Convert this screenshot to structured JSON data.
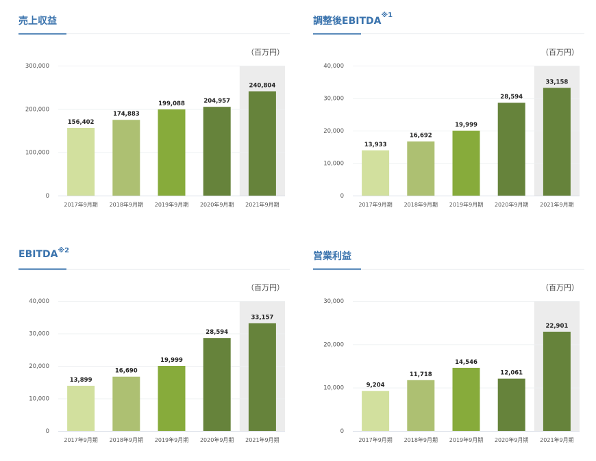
{
  "colors": {
    "title": "#3a73ad",
    "highlight_bg": "#ececec",
    "bars": [
      "#d2e09e",
      "#adc072",
      "#87ab3b",
      "#66833b",
      "#66833b"
    ]
  },
  "chart_data": [
    {
      "type": "bar",
      "title": "売上収益",
      "title_note": "",
      "unit": "（百万円）",
      "categories": [
        "2017年9月期",
        "2018年9月期",
        "2019年9月期",
        "2020年9月期",
        "2021年9月期"
      ],
      "values": [
        156402,
        174883,
        199088,
        204957,
        240804
      ],
      "labels": [
        "156,402",
        "174,883",
        "199,088",
        "204,957",
        "240,804"
      ],
      "ylim": [
        0,
        300000
      ],
      "yticks": [
        0,
        100000,
        200000,
        300000
      ],
      "ytick_labels": [
        "0",
        "100,000",
        "200,000",
        "300,000"
      ],
      "highlight": "2021年9月期"
    },
    {
      "type": "bar",
      "title": "調整後EBITDA",
      "title_note": "※1",
      "unit": "（百万円）",
      "categories": [
        "2017年9月期",
        "2018年9月期",
        "2019年9月期",
        "2020年9月期",
        "2021年9月期"
      ],
      "values": [
        13933,
        16692,
        19999,
        28594,
        33158
      ],
      "labels": [
        "13,933",
        "16,692",
        "19,999",
        "28,594",
        "33,158"
      ],
      "ylim": [
        0,
        40000
      ],
      "yticks": [
        0,
        10000,
        20000,
        30000,
        40000
      ],
      "ytick_labels": [
        "0",
        "10,000",
        "20,000",
        "30,000",
        "40,000"
      ],
      "highlight": "2021年9月期"
    },
    {
      "type": "bar",
      "title": "EBITDA",
      "title_note": "※2",
      "unit": "（百万円）",
      "categories": [
        "2017年9月期",
        "2018年9月期",
        "2019年9月期",
        "2020年9月期",
        "2021年9月期"
      ],
      "values": [
        13899,
        16690,
        19999,
        28594,
        33157
      ],
      "labels": [
        "13,899",
        "16,690",
        "19,999",
        "28,594",
        "33,157"
      ],
      "ylim": [
        0,
        40000
      ],
      "yticks": [
        0,
        10000,
        20000,
        30000,
        40000
      ],
      "ytick_labels": [
        "0",
        "10,000",
        "20,000",
        "30,000",
        "40,000"
      ],
      "highlight": "2021年9月期"
    },
    {
      "type": "bar",
      "title": "営業利益",
      "title_note": "",
      "unit": "（百万円）",
      "categories": [
        "2017年9月期",
        "2018年9月期",
        "2019年9月期",
        "2020年9月期",
        "2021年9月期"
      ],
      "values": [
        9204,
        11718,
        14546,
        12061,
        22901
      ],
      "labels": [
        "9,204",
        "11,718",
        "14,546",
        "12,061",
        "22,901"
      ],
      "ylim": [
        0,
        30000
      ],
      "yticks": [
        0,
        10000,
        20000,
        30000
      ],
      "ytick_labels": [
        "0",
        "10,000",
        "20,000",
        "30,000"
      ],
      "highlight": "2021年9月期"
    }
  ]
}
